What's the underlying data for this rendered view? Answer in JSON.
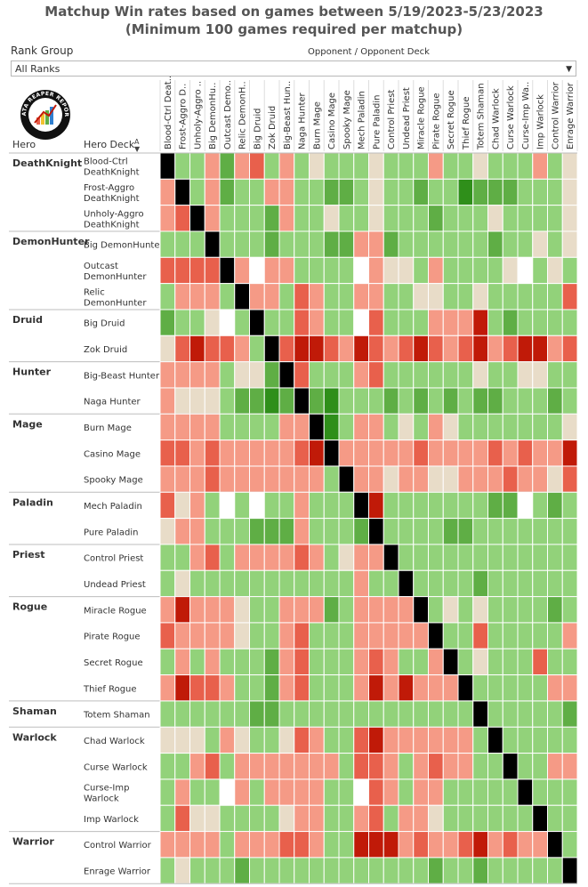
{
  "title": {
    "line1": "Matchup Win rates based on games between 5/19/2023-5/23/2023",
    "line2": "(Minimum 100 games required per matchup)"
  },
  "filter": {
    "label": "Rank Group",
    "selected": "All Ranks"
  },
  "column_header": "Opponent / Opponent Deck",
  "row_headers": {
    "hero": "Hero",
    "deck": "Hero Deck"
  },
  "logo": {
    "text": "DATA REAPER REPORT"
  },
  "colors": {
    "strong_win": "#2f8f1a",
    "win": "#5fae45",
    "slight_win": "#92d27a",
    "even": "#e8dcc8",
    "slight_loss": "#f59a86",
    "loss": "#e8604c",
    "strong_loss": "#c01a08",
    "mirror": "#000000",
    "no_data": "#ffffff"
  },
  "chart_data": {
    "type": "heatmap",
    "value_scale": [
      "-3 strong loss",
      "-2 loss",
      "-1 slight loss",
      "0 even",
      "1 slight win",
      "2 win",
      "3 strong win"
    ],
    "columns": [
      "Blood-Ctrl Deat..",
      "Frost-Aggro D..",
      "Unholy-Aggro ..",
      "Big DemonHu..",
      "Outcast Demo..",
      "Relic DemonH..",
      "Big Druid",
      "Zok Druid",
      "Big-Beast Hun..",
      "Naga Hunter",
      "Burn Mage",
      "Casino Mage",
      "Spooky Mage",
      "Mech Paladin",
      "Pure Paladin",
      "Control Priest",
      "Undead Priest",
      "Miracle Rogue",
      "Pirate Rogue",
      "Secret Rogue",
      "Thief Rogue",
      "Totem Shaman",
      "Chad Warlock",
      "Curse Warlock",
      "Curse-Imp Wa..",
      "Imp Warlock",
      "Control Warrior",
      "Enrage Warrior"
    ],
    "groups": [
      {
        "hero": "DeathKnight",
        "decks": [
          {
            "name": "Blood-Ctrl DeathKnight",
            "values": [
              "M",
              1,
              1,
              -1,
              2,
              -1,
              -2,
              1,
              -1,
              1,
              0,
              1,
              1,
              1,
              0,
              1,
              1,
              1,
              -1,
              1,
              1,
              0,
              1,
              1,
              1,
              -1,
              1,
              0
            ]
          },
          {
            "name": "Frost-Aggro DeathKnight",
            "values": [
              -1,
              "M",
              1,
              -1,
              2,
              1,
              1,
              -1,
              -1,
              1,
              1,
              2,
              2,
              1,
              0,
              1,
              1,
              2,
              1,
              1,
              3,
              2,
              2,
              2,
              1,
              1,
              1,
              0
            ]
          },
          {
            "name": "Unholy-Aggro DeathKnight",
            "values": [
              -1,
              -2,
              "M",
              -1,
              1,
              1,
              1,
              2,
              -1,
              1,
              1,
              0,
              1,
              1,
              0,
              1,
              1,
              1,
              2,
              1,
              1,
              1,
              0,
              1,
              1,
              1,
              1,
              0
            ]
          }
        ]
      },
      {
        "hero": "DemonHunter",
        "decks": [
          {
            "name": "Big DemonHunter",
            "values": [
              1,
              1,
              1,
              "M",
              1,
              1,
              1,
              2,
              1,
              1,
              1,
              2,
              2,
              -1,
              -1,
              2,
              1,
              1,
              1,
              1,
              1,
              1,
              2,
              1,
              1,
              0,
              1,
              0
            ]
          },
          {
            "name": "Outcast DemonHunter",
            "values": [
              -2,
              -2,
              -2,
              -2,
              "M",
              -1,
              "N",
              -1,
              -1,
              1,
              1,
              1,
              1,
              "N",
              -1,
              0,
              0,
              1,
              -1,
              1,
              1,
              1,
              1,
              0,
              "N",
              1,
              0,
              1
            ]
          },
          {
            "name": "Relic DemonHunter",
            "values": [
              1,
              -1,
              -1,
              -1,
              1,
              "M",
              -1,
              -1,
              1,
              -2,
              -1,
              1,
              1,
              -1,
              -1,
              1,
              1,
              0,
              0,
              1,
              1,
              0,
              1,
              1,
              1,
              1,
              1,
              -2
            ]
          }
        ]
      },
      {
        "hero": "Druid",
        "decks": [
          {
            "name": "Big Druid",
            "values": [
              2,
              1,
              1,
              0,
              "N",
              1,
              "M",
              1,
              1,
              -2,
              -1,
              1,
              1,
              "N",
              -2,
              1,
              1,
              1,
              -1,
              -1,
              -1,
              -3,
              1,
              2,
              1,
              1,
              1,
              1
            ]
          },
          {
            "name": "Zok Druid",
            "values": [
              0,
              -2,
              -3,
              -2,
              -2,
              -1,
              1,
              "M",
              -2,
              -3,
              -3,
              -2,
              -1,
              -3,
              -2,
              -1,
              -2,
              -3,
              -2,
              -1,
              -2,
              -3,
              -1,
              -2,
              -3,
              -3,
              -1,
              -2
            ]
          }
        ]
      },
      {
        "hero": "Hunter",
        "decks": [
          {
            "name": "Big-Beast Hunter",
            "values": [
              -1,
              -1,
              -1,
              -1,
              1,
              0,
              0,
              2,
              "M",
              -2,
              1,
              1,
              1,
              -1,
              -2,
              1,
              1,
              1,
              1,
              1,
              1,
              0,
              1,
              1,
              0,
              0,
              1,
              1
            ]
          },
          {
            "name": "Naga Hunter",
            "values": [
              -1,
              0,
              0,
              0,
              1,
              2,
              2,
              3,
              2,
              "M",
              2,
              3,
              1,
              1,
              1,
              2,
              1,
              2,
              1,
              2,
              1,
              2,
              2,
              1,
              1,
              1,
              2,
              1
            ]
          }
        ]
      },
      {
        "hero": "Mage",
        "decks": [
          {
            "name": "Burn Mage",
            "values": [
              -1,
              -1,
              -1,
              -1,
              1,
              1,
              1,
              1,
              -1,
              -1,
              "M",
              3,
              1,
              -1,
              -1,
              1,
              0,
              1,
              -1,
              0,
              1,
              1,
              1,
              1,
              1,
              1,
              1,
              0
            ]
          },
          {
            "name": "Casino Mage",
            "values": [
              -2,
              -2,
              -1,
              -2,
              -1,
              -1,
              -1,
              -1,
              -1,
              -2,
              -3,
              "M",
              -1,
              -1,
              -1,
              -1,
              -1,
              -2,
              -1,
              -1,
              -1,
              -1,
              -2,
              -1,
              -2,
              -1,
              -1,
              -3
            ]
          },
          {
            "name": "Spooky Mage",
            "values": [
              -1,
              -1,
              -1,
              -2,
              -1,
              -1,
              -1,
              -1,
              -1,
              -1,
              -1,
              1,
              "M",
              -1,
              -1,
              0,
              -1,
              -1,
              0,
              0,
              -1,
              -1,
              -1,
              -2,
              -1,
              -1,
              0,
              -2
            ]
          }
        ]
      },
      {
        "hero": "Paladin",
        "decks": [
          {
            "name": "Mech Paladin",
            "values": [
              -2,
              0,
              -1,
              1,
              "N",
              1,
              "N",
              1,
              1,
              -1,
              1,
              1,
              1,
              "M",
              -3,
              1,
              1,
              1,
              1,
              1,
              1,
              1,
              2,
              2,
              "N",
              1,
              2,
              1
            ]
          },
          {
            "name": "Pure Paladin",
            "values": [
              0,
              -1,
              -1,
              1,
              1,
              1,
              2,
              2,
              2,
              -1,
              1,
              1,
              1,
              2,
              "M",
              1,
              1,
              1,
              1,
              2,
              2,
              1,
              1,
              1,
              1,
              1,
              1,
              1
            ]
          }
        ]
      },
      {
        "hero": "Priest",
        "decks": [
          {
            "name": "Control Priest",
            "values": [
              1,
              1,
              -1,
              -2,
              1,
              -1,
              -1,
              -1,
              -1,
              -2,
              -1,
              1,
              0,
              -1,
              -1,
              "M",
              1,
              1,
              1,
              1,
              1,
              1,
              1,
              1,
              1,
              1,
              1,
              1
            ]
          },
          {
            "name": "Undead Priest",
            "values": [
              1,
              0,
              1,
              1,
              1,
              1,
              1,
              1,
              1,
              1,
              1,
              1,
              1,
              -1,
              1,
              1,
              "M",
              1,
              1,
              1,
              1,
              2,
              1,
              1,
              1,
              1,
              1,
              1
            ]
          }
        ]
      },
      {
        "hero": "Rogue",
        "decks": [
          {
            "name": "Miracle Rogue",
            "values": [
              -1,
              -3,
              -1,
              -1,
              -1,
              0,
              1,
              1,
              -1,
              -1,
              -1,
              2,
              1,
              -1,
              -1,
              -1,
              -1,
              "M",
              1,
              0,
              1,
              0,
              1,
              1,
              1,
              1,
              2,
              1
            ]
          },
          {
            "name": "Pirate Rogue",
            "values": [
              -2,
              -1,
              -1,
              -1,
              -1,
              0,
              1,
              1,
              -1,
              -2,
              1,
              1,
              1,
              -1,
              -1,
              -1,
              -1,
              -1,
              "M",
              1,
              1,
              -2,
              1,
              1,
              1,
              1,
              1,
              -1
            ]
          },
          {
            "name": "Secret Rogue",
            "values": [
              1,
              -1,
              1,
              -1,
              1,
              1,
              1,
              2,
              -1,
              -2,
              1,
              1,
              1,
              -1,
              -2,
              -1,
              1,
              1,
              -1,
              "M",
              1,
              0,
              1,
              1,
              1,
              -2,
              1,
              1
            ]
          },
          {
            "name": "Thief Rogue",
            "values": [
              -1,
              -3,
              -2,
              -2,
              -1,
              1,
              1,
              2,
              -1,
              -2,
              1,
              1,
              1,
              -1,
              -3,
              -1,
              -3,
              -1,
              -1,
              -1,
              "M",
              1,
              1,
              1,
              1,
              1,
              -1,
              -1
            ]
          }
        ]
      },
      {
        "hero": "Shaman",
        "decks": [
          {
            "name": "Totem Shaman",
            "values": [
              1,
              1,
              1,
              1,
              1,
              1,
              2,
              2,
              1,
              1,
              1,
              1,
              1,
              1,
              1,
              1,
              1,
              1,
              1,
              1,
              1,
              "M",
              1,
              1,
              1,
              1,
              1,
              2
            ]
          }
        ]
      },
      {
        "hero": "Warlock",
        "decks": [
          {
            "name": "Chad Warlock",
            "values": [
              0,
              0,
              0,
              1,
              -1,
              0,
              1,
              1,
              0,
              -2,
              -1,
              1,
              1,
              -2,
              -3,
              -1,
              -1,
              -1,
              -1,
              -1,
              -1,
              1,
              "M",
              1,
              1,
              1,
              1,
              1
            ]
          },
          {
            "name": "Curse Warlock",
            "values": [
              1,
              1,
              -1,
              -2,
              1,
              -1,
              -1,
              -1,
              -1,
              -1,
              -1,
              -1,
              1,
              -2,
              -2,
              -1,
              1,
              -1,
              -2,
              -1,
              -1,
              1,
              1,
              "M",
              1,
              1,
              -1,
              -1
            ]
          },
          {
            "name": "Curse-Imp Warlock",
            "values": [
              1,
              -1,
              1,
              1,
              "N",
              -1,
              1,
              -1,
              -1,
              -1,
              -1,
              1,
              1,
              "N",
              -2,
              -1,
              1,
              -1,
              -1,
              1,
              1,
              1,
              1,
              1,
              "M",
              1,
              1,
              1
            ]
          },
          {
            "name": "Imp Warlock",
            "values": [
              1,
              -2,
              0,
              0,
              1,
              1,
              1,
              1,
              0,
              -1,
              -1,
              1,
              1,
              -1,
              -2,
              1,
              -1,
              -1,
              0,
              1,
              1,
              1,
              1,
              1,
              1,
              "M",
              1,
              1
            ]
          }
        ]
      },
      {
        "hero": "Warrior",
        "decks": [
          {
            "name": "Control Warrior",
            "values": [
              -1,
              -1,
              -1,
              -1,
              1,
              -1,
              -1,
              -1,
              -2,
              -2,
              -1,
              1,
              1,
              -3,
              -3,
              -3,
              -1,
              -2,
              -1,
              -1,
              -2,
              -3,
              -1,
              -2,
              -1,
              -1,
              "M",
              1
            ]
          },
          {
            "name": "Enrage Warrior",
            "values": [
              1,
              0,
              1,
              1,
              1,
              2,
              1,
              1,
              1,
              1,
              1,
              1,
              1,
              1,
              1,
              1,
              1,
              1,
              2,
              1,
              1,
              2,
              1,
              1,
              1,
              1,
              1,
              "M"
            ]
          }
        ]
      }
    ]
  }
}
